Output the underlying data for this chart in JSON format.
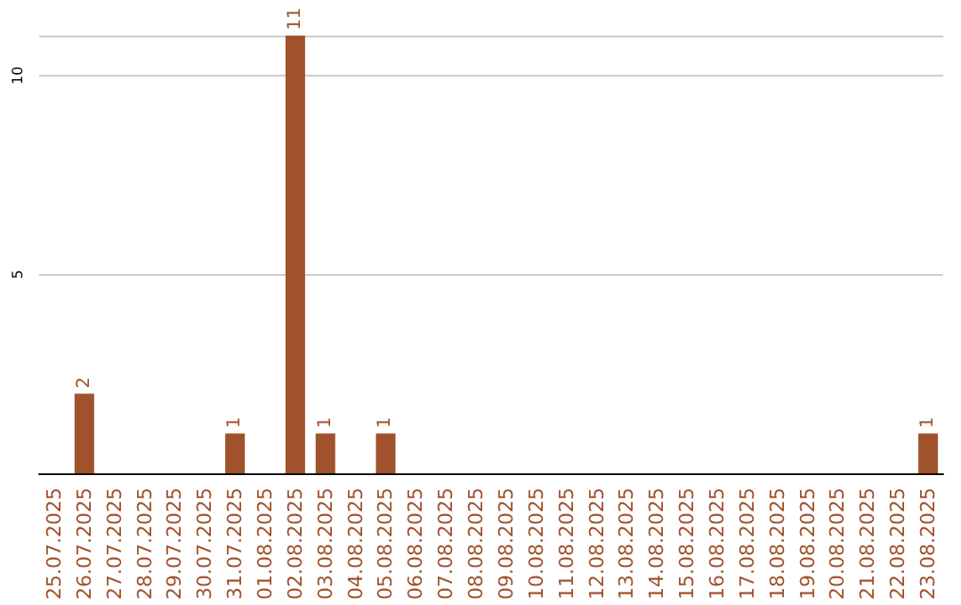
{
  "chart_data": {
    "type": "bar",
    "categories": [
      "25.07.2025",
      "26.07.2025",
      "27.07.2025",
      "28.07.2025",
      "29.07.2025",
      "30.07.2025",
      "31.07.2025",
      "01.08.2025",
      "02.08.2025",
      "03.08.2025",
      "04.08.2025",
      "05.08.2025",
      "06.08.2025",
      "07.08.2025",
      "08.08.2025",
      "09.08.2025",
      "10.08.2025",
      "11.08.2025",
      "12.08.2025",
      "13.08.2025",
      "14.08.2025",
      "15.08.2025",
      "16.08.2025",
      "17.08.2025",
      "18.08.2025",
      "19.08.2025",
      "20.08.2025",
      "21.08.2025",
      "22.08.2025",
      "23.08.2025"
    ],
    "values": [
      0,
      2,
      0,
      0,
      0,
      0,
      1,
      0,
      11,
      1,
      0,
      1,
      0,
      0,
      0,
      0,
      0,
      0,
      0,
      0,
      0,
      0,
      0,
      0,
      0,
      0,
      0,
      0,
      0,
      1
    ],
    "value_labels": [
      null,
      "2",
      null,
      null,
      null,
      null,
      "1",
      null,
      "11",
      "1",
      null,
      "1",
      null,
      null,
      null,
      null,
      null,
      null,
      null,
      null,
      null,
      null,
      null,
      null,
      null,
      null,
      null,
      null,
      null,
      "1"
    ],
    "color": "#a0522d",
    "ylim": [
      0,
      11
    ],
    "yticks": [
      5,
      10
    ],
    "grid": "y"
  }
}
